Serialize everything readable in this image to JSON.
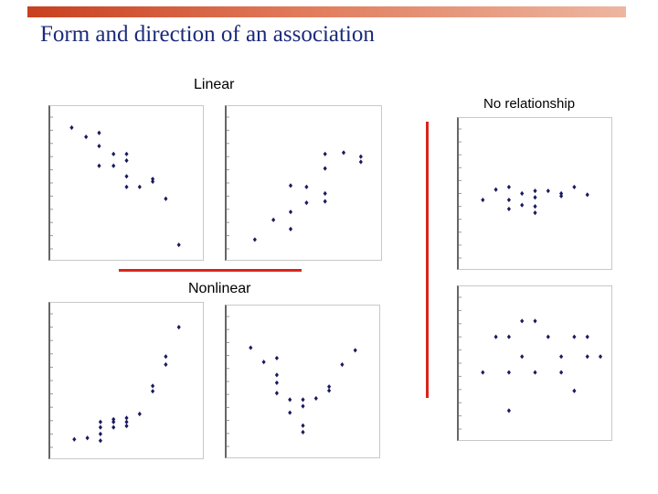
{
  "slide": {
    "title": "Form and direction of an association"
  },
  "labels": {
    "linear": "Linear",
    "nonlinear": "Nonlinear",
    "no_relationship": "No relationship"
  },
  "colors": {
    "point": "#1a1a5e",
    "divider": "#d8261c",
    "title": "#1a2a7a"
  },
  "chart_data": [
    {
      "id": "linear-negative",
      "type": "scatter",
      "xlim": [
        0,
        10
      ],
      "ylim": [
        0,
        10
      ],
      "points": [
        [
          0.8,
          9.2
        ],
        [
          1.9,
          8.5
        ],
        [
          2.9,
          8.8
        ],
        [
          2.9,
          7.8
        ],
        [
          2.9,
          6.3
        ],
        [
          4,
          7.2
        ],
        [
          4,
          6.3
        ],
        [
          5,
          7.2
        ],
        [
          5,
          6.7
        ],
        [
          5,
          5.5
        ],
        [
          5,
          4.7
        ],
        [
          6,
          4.7
        ],
        [
          7,
          5.1
        ],
        [
          7,
          5.3
        ],
        [
          8,
          3.8
        ],
        [
          9,
          0.3
        ]
      ]
    },
    {
      "id": "linear-positive",
      "type": "scatter",
      "xlim": [
        0,
        10
      ],
      "ylim": [
        0,
        10
      ],
      "points": [
        [
          1.3,
          0.7
        ],
        [
          2.7,
          2.2
        ],
        [
          4,
          1.5
        ],
        [
          4,
          2.8
        ],
        [
          4,
          4.8
        ],
        [
          5.2,
          4.7
        ],
        [
          5.2,
          3.5
        ],
        [
          6.6,
          3.6
        ],
        [
          6.6,
          4.2
        ],
        [
          6.6,
          6.1
        ],
        [
          6.6,
          7.2
        ],
        [
          8,
          7.3
        ],
        [
          9.3,
          7
        ],
        [
          9.3,
          6.6
        ]
      ]
    },
    {
      "id": "nonlinear-exponential",
      "type": "scatter",
      "xlim": [
        0,
        10
      ],
      "ylim": [
        0,
        10
      ],
      "points": [
        [
          1,
          0.6
        ],
        [
          2,
          0.7
        ],
        [
          3,
          0.5
        ],
        [
          3,
          1
        ],
        [
          3,
          1.5
        ],
        [
          3,
          1.9
        ],
        [
          4,
          1.5
        ],
        [
          4,
          1.9
        ],
        [
          4,
          2.1
        ],
        [
          5,
          1.6
        ],
        [
          5,
          1.9
        ],
        [
          5,
          2.2
        ],
        [
          6,
          2.5
        ],
        [
          7,
          4.2
        ],
        [
          7,
          4.6
        ],
        [
          8,
          6.2
        ],
        [
          8,
          6.8
        ],
        [
          9,
          9
        ]
      ]
    },
    {
      "id": "nonlinear-u-shape",
      "type": "scatter",
      "xlim": [
        0,
        10
      ],
      "ylim": [
        0,
        10
      ],
      "points": [
        [
          1,
          7.6
        ],
        [
          2,
          6.5
        ],
        [
          3,
          6.8
        ],
        [
          3,
          5.5
        ],
        [
          3,
          4.9
        ],
        [
          3,
          4.1
        ],
        [
          4,
          3.6
        ],
        [
          4,
          2.6
        ],
        [
          5,
          3.6
        ],
        [
          5,
          3.1
        ],
        [
          5,
          1.6
        ],
        [
          5,
          1.1
        ],
        [
          6,
          3.7
        ],
        [
          7,
          4.3
        ],
        [
          7,
          4.6
        ],
        [
          8,
          6.3
        ],
        [
          9,
          7.4
        ]
      ]
    },
    {
      "id": "no-relationship-top",
      "type": "scatter",
      "xlim": [
        0,
        10
      ],
      "ylim": [
        0,
        10
      ],
      "points": [
        [
          1,
          4.5
        ],
        [
          2,
          5.3
        ],
        [
          3,
          5.5
        ],
        [
          3,
          4.5
        ],
        [
          3,
          3.8
        ],
        [
          4,
          5
        ],
        [
          4,
          4.1
        ],
        [
          5,
          5.2
        ],
        [
          5,
          4.7
        ],
        [
          5,
          4
        ],
        [
          5,
          3.5
        ],
        [
          6,
          5.2
        ],
        [
          7,
          5
        ],
        [
          7,
          4.8
        ],
        [
          8,
          5.5
        ],
        [
          9,
          4.9
        ]
      ]
    },
    {
      "id": "no-relationship-bottom",
      "type": "scatter",
      "xlim": [
        0,
        10
      ],
      "ylim": [
        0,
        10
      ],
      "points": [
        [
          1,
          4.3
        ],
        [
          2,
          7
        ],
        [
          3,
          7
        ],
        [
          3,
          4.3
        ],
        [
          4,
          8.2
        ],
        [
          4,
          5.5
        ],
        [
          5,
          8.2
        ],
        [
          5,
          4.3
        ],
        [
          6,
          7
        ],
        [
          7,
          5.5
        ],
        [
          7,
          4.3
        ],
        [
          8,
          7
        ],
        [
          8,
          2.9
        ],
        [
          9,
          7
        ],
        [
          9,
          5.5
        ],
        [
          10,
          5.5
        ],
        [
          3,
          1.4
        ]
      ]
    }
  ]
}
